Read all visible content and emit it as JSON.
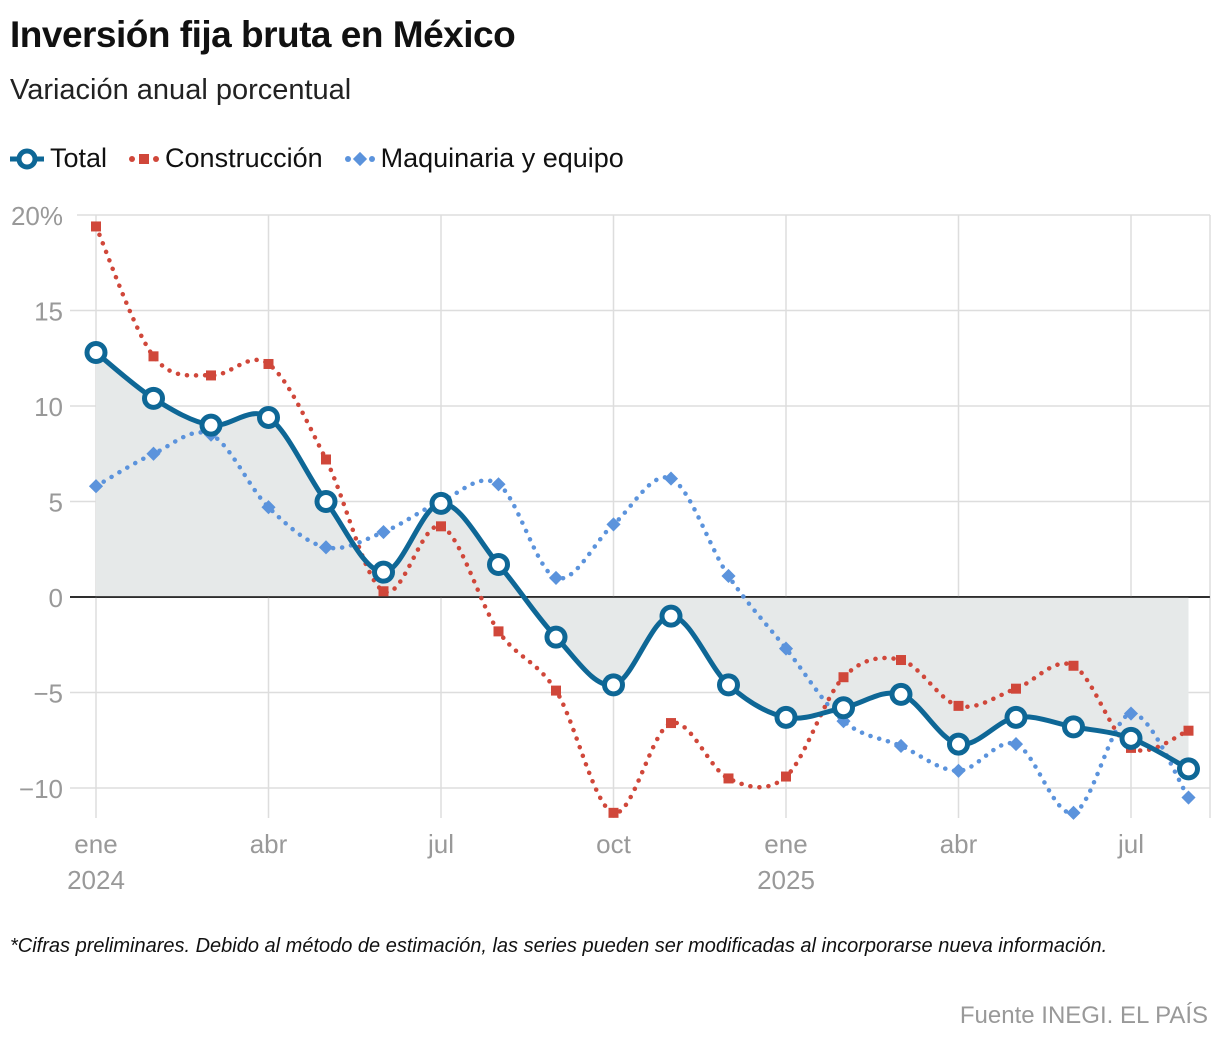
{
  "chart_data": {
    "type": "line",
    "title": "Inversión fija bruta en México",
    "subtitle": "Variación anual porcentual",
    "ylim": [
      -11.5,
      20
    ],
    "yticks": [
      20,
      15,
      10,
      5,
      0,
      -5,
      -10
    ],
    "ytick_labels": [
      "20%",
      "15",
      "10",
      "5",
      "0",
      "−5",
      "−10"
    ],
    "x": [
      "2024-01",
      "2024-02",
      "2024-03",
      "2024-04",
      "2024-05",
      "2024-06",
      "2024-07",
      "2024-08",
      "2024-09",
      "2024-10",
      "2024-11",
      "2024-12",
      "2025-01",
      "2025-02",
      "2025-03",
      "2025-04",
      "2025-05",
      "2025-06",
      "2025-07",
      "2025-08"
    ],
    "xticks": [
      {
        "month": "2024-01",
        "label": "ene",
        "year": "2024"
      },
      {
        "month": "2024-04",
        "label": "abr"
      },
      {
        "month": "2024-07",
        "label": "jul"
      },
      {
        "month": "2024-10",
        "label": "oct"
      },
      {
        "month": "2025-01",
        "label": "ene",
        "year": "2025"
      },
      {
        "month": "2025-04",
        "label": "abr"
      },
      {
        "month": "2025-07",
        "label": "jul"
      }
    ],
    "grid": true,
    "legend_position": "top-left",
    "series": [
      {
        "name": "Total",
        "color": "#0e6796",
        "style": "solid-circle",
        "values": [
          12.8,
          10.4,
          9.0,
          9.4,
          5.0,
          1.3,
          4.9,
          1.7,
          -2.1,
          -4.6,
          -1.0,
          -4.6,
          -6.3,
          -5.8,
          -5.1,
          -7.7,
          -6.3,
          -6.8,
          -7.4,
          -9.0
        ]
      },
      {
        "name": "Construcción",
        "color": "#d0473a",
        "style": "dotted-square",
        "values": [
          19.4,
          12.6,
          11.6,
          12.2,
          7.2,
          0.3,
          3.7,
          -1.8,
          -4.9,
          -11.3,
          -6.6,
          -9.5,
          -9.4,
          -4.2,
          -3.3,
          -5.7,
          -4.8,
          -3.6,
          -7.9,
          -7.0
        ]
      },
      {
        "name": "Maquinaria y equipo",
        "color": "#5b93dc",
        "style": "dotted-diamond",
        "values": [
          5.8,
          7.5,
          8.5,
          4.7,
          2.6,
          3.4,
          5.0,
          5.9,
          1.0,
          3.8,
          6.2,
          1.1,
          -2.7,
          -6.5,
          -7.8,
          -9.1,
          -7.7,
          -11.3,
          -6.1,
          -10.5
        ]
      }
    ],
    "area_fill_color": "#e6e9e9"
  },
  "note": "*Cifras preliminares. Debido al método de estimación, las series pueden ser modificadas al incorporarse nueva información.",
  "source": "Fuente INEGI. EL PAÍS"
}
